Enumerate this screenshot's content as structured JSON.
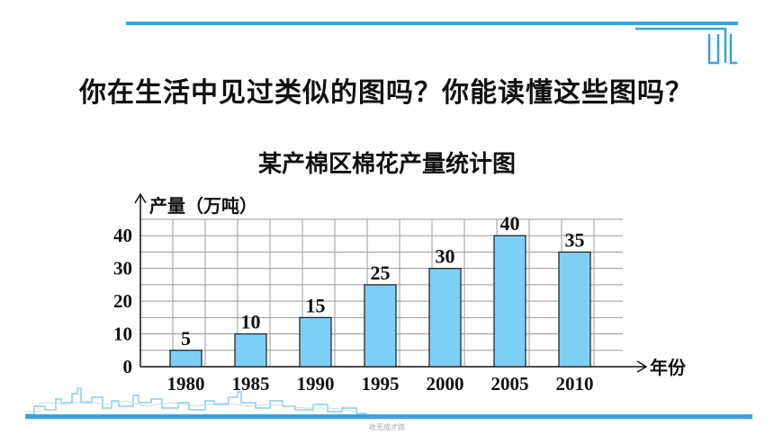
{
  "header": {
    "question": "你在生活中见过类似的图吗？你能读懂这些图吗？"
  },
  "footer": {
    "note": "收无成才路"
  },
  "colors": {
    "accent": "#3aa3dc",
    "bar_fill": "#7dd0f5",
    "bar_stroke": "#1a1a1a",
    "grid": "#9a9a9a"
  },
  "chart_data": {
    "type": "bar",
    "title": "某产棉区棉花产量统计图",
    "ylabel": "产量（万吨）",
    "xlabel": "年份",
    "categories": [
      "1980",
      "1985",
      "1990",
      "1995",
      "2000",
      "2005",
      "2010"
    ],
    "values": [
      5,
      10,
      15,
      25,
      30,
      40,
      35
    ],
    "y_ticks": [
      0,
      10,
      20,
      30,
      40
    ],
    "ylim": [
      0,
      45
    ],
    "grid": true,
    "data_labels": true
  }
}
